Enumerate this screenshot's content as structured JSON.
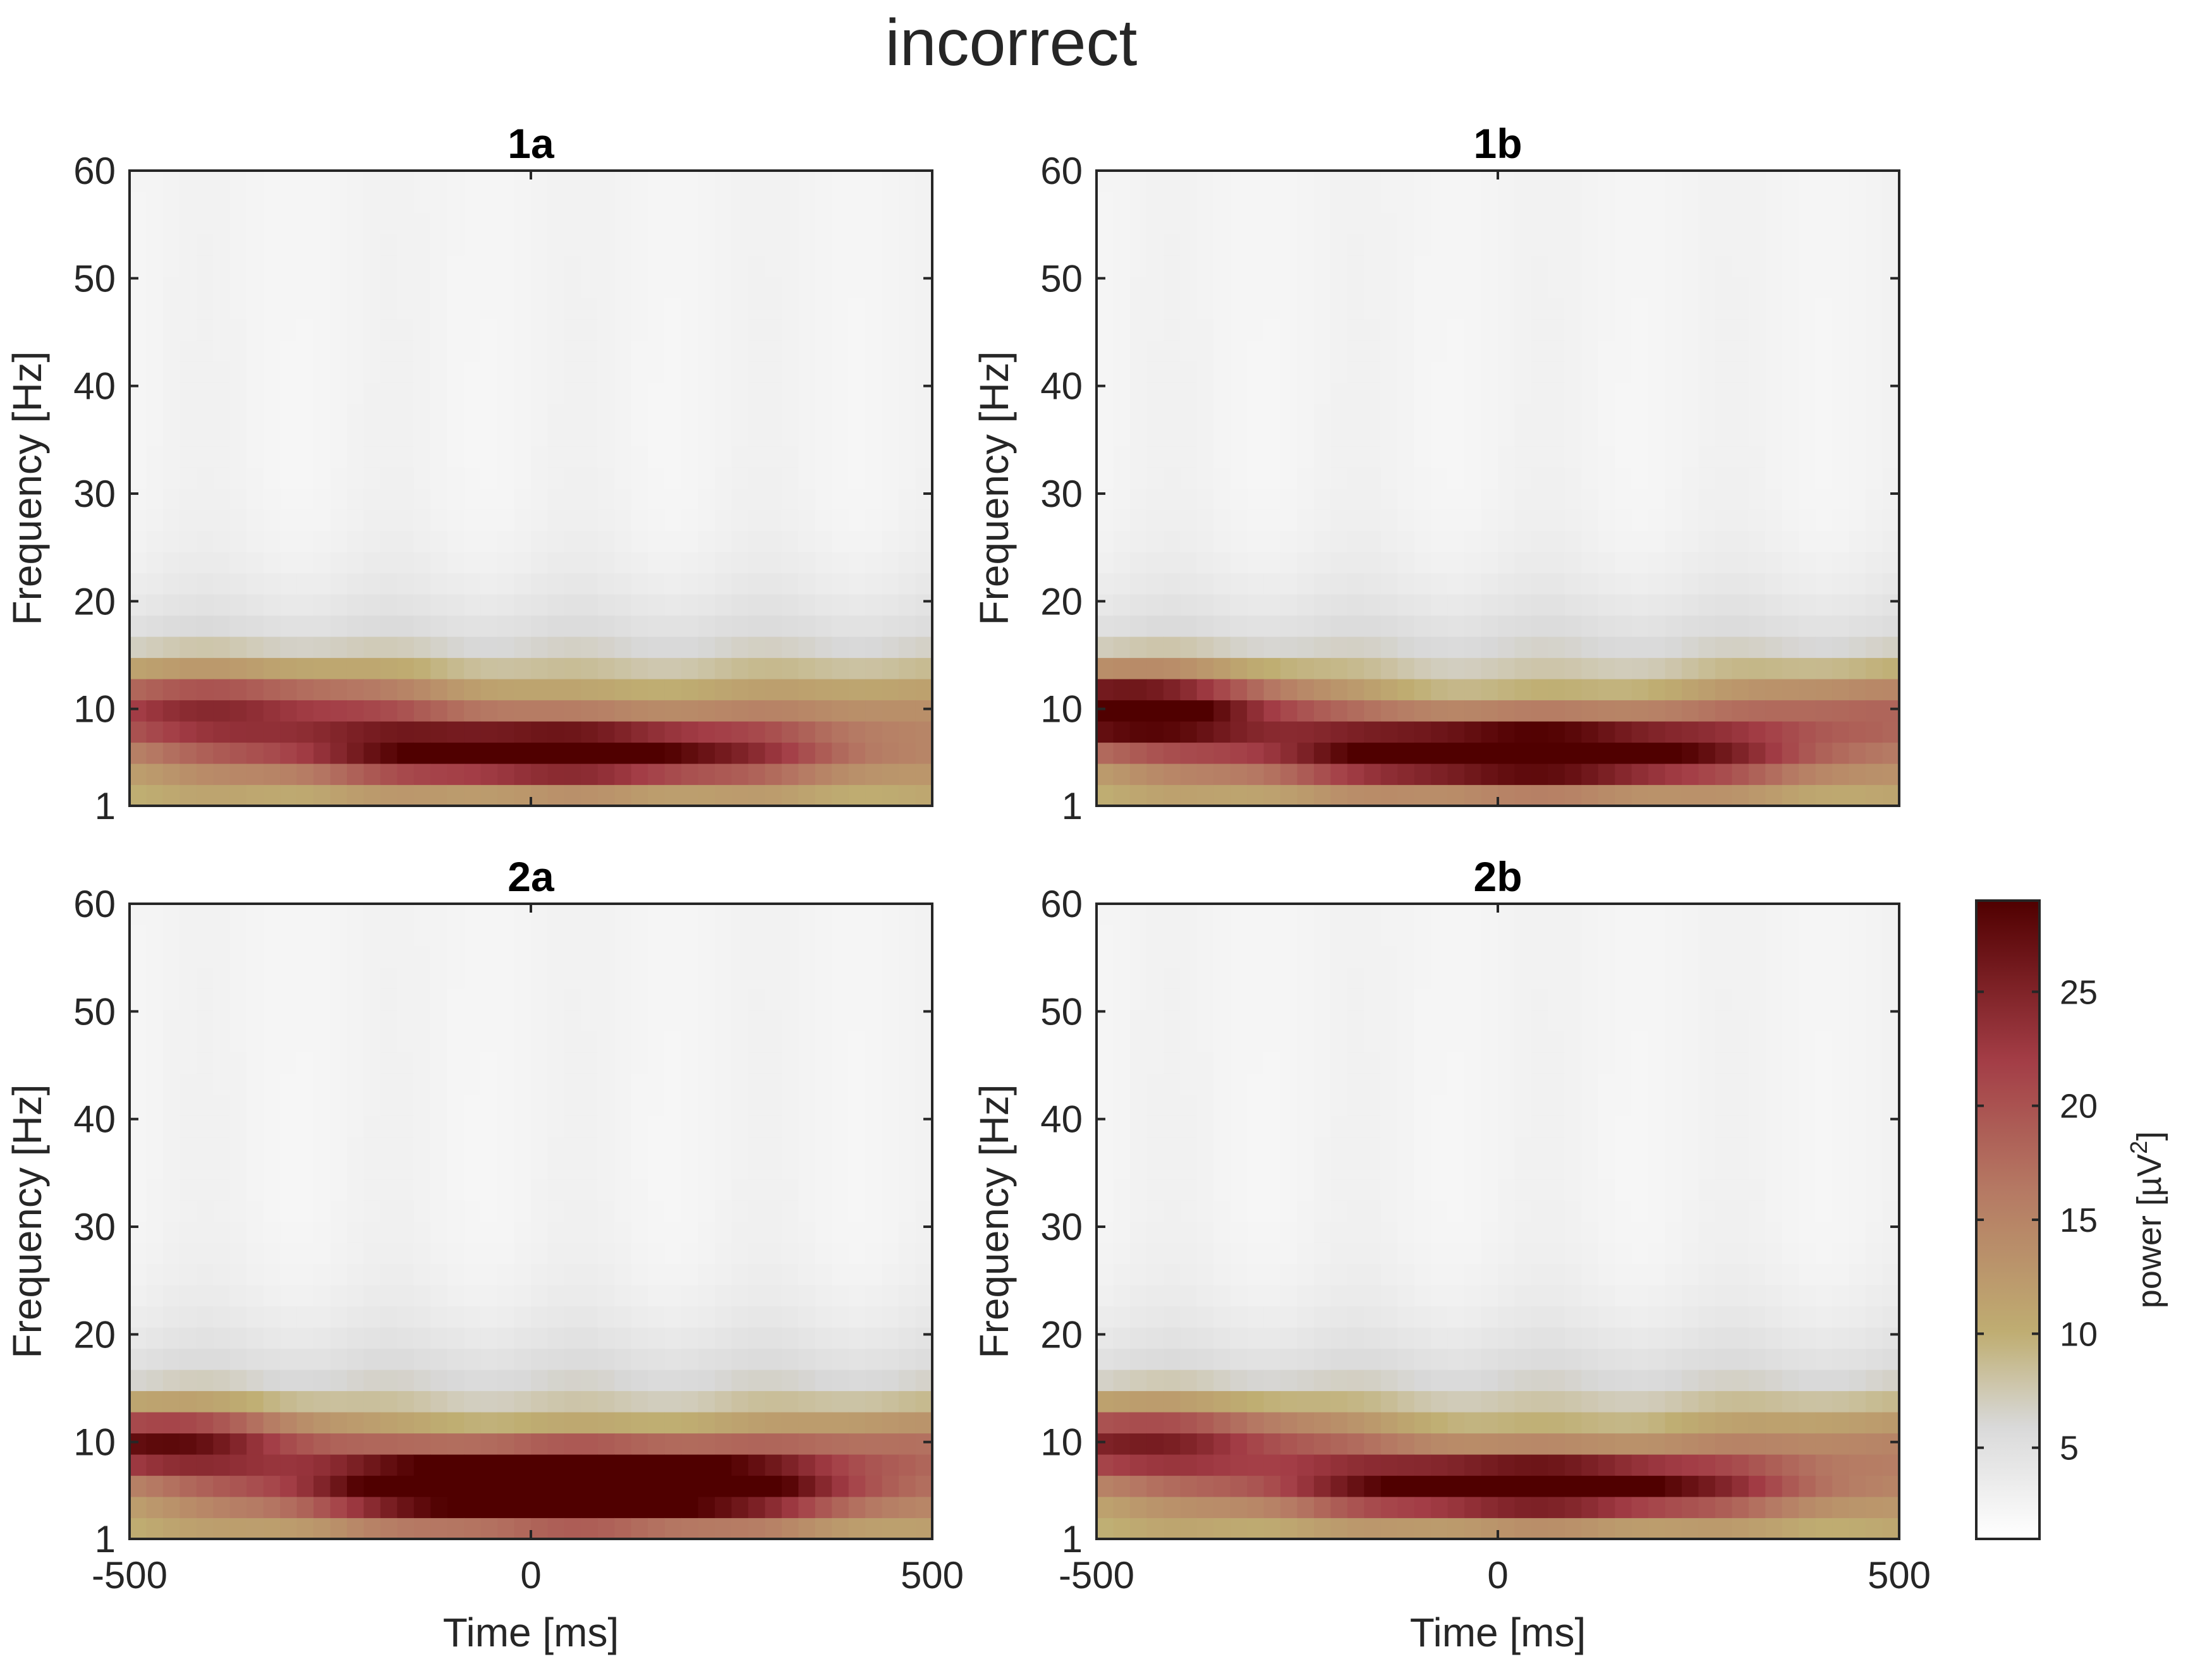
{
  "figure_title": "incorrect",
  "colors": {
    "low": "#ffffff",
    "mid_low": "#d8d8d8",
    "mid": "#bfae72",
    "mid_high": "#b57863",
    "high": "#a33d46",
    "max": "#500000",
    "axis": "#262626"
  },
  "chart_data": [
    {
      "type": "heatmap",
      "title": "1a",
      "xlabel": "",
      "ylabel": "Frequency [Hz]",
      "xlim": [
        -500,
        500
      ],
      "ylim": [
        1,
        60
      ],
      "xticks": [
        "-500",
        "0",
        "500"
      ],
      "yticks": [
        "1",
        "10",
        "20",
        "30",
        "40",
        "50",
        "60"
      ],
      "show_xtick_labels": false,
      "features": {
        "background": 2.5,
        "broadband_bump": {
          "center_hz": 5,
          "width_hz": 12,
          "amplitude": 8
        },
        "blobs": [
          {
            "t": -400,
            "f": 10,
            "st": 220,
            "sf": 2.6,
            "amp": 14
          },
          {
            "t": 30,
            "f": 6,
            "st": 230,
            "sf": 2.0,
            "amp": 22
          },
          {
            "t": 400,
            "f": 10,
            "st": 200,
            "sf": 2.6,
            "amp": 4
          }
        ]
      }
    },
    {
      "type": "heatmap",
      "title": "1b",
      "xlabel": "",
      "ylabel": "Frequency [Hz]",
      "xlim": [
        -500,
        500
      ],
      "ylim": [
        1,
        60
      ],
      "xticks": [
        "-500",
        "0",
        "500"
      ],
      "yticks": [
        "1",
        "10",
        "20",
        "30",
        "40",
        "50",
        "60"
      ],
      "show_xtick_labels": false,
      "features": {
        "background": 2.5,
        "broadband_bump": {
          "center_hz": 5,
          "width_hz": 12,
          "amplitude": 8
        },
        "blobs": [
          {
            "t": -480,
            "f": 10,
            "st": 160,
            "sf": 2.4,
            "amp": 24
          },
          {
            "t": 30,
            "f": 6,
            "st": 230,
            "sf": 2.2,
            "amp": 26
          },
          {
            "t": 460,
            "f": 10,
            "st": 160,
            "sf": 2.4,
            "amp": 8
          }
        ]
      }
    },
    {
      "type": "heatmap",
      "title": "2a",
      "xlabel": "Time [ms]",
      "ylabel": "Frequency [Hz]",
      "xlim": [
        -500,
        500
      ],
      "ylim": [
        1,
        60
      ],
      "xticks": [
        "-500",
        "0",
        "500"
      ],
      "yticks": [
        "1",
        "10",
        "20",
        "30",
        "40",
        "50",
        "60"
      ],
      "show_xtick_labels": true,
      "features": {
        "background": 2.5,
        "broadband_bump": {
          "center_hz": 5,
          "width_hz": 12,
          "amplitude": 8
        },
        "blobs": [
          {
            "t": -480,
            "f": 10,
            "st": 150,
            "sf": 2.2,
            "amp": 18
          },
          {
            "t": 50,
            "f": 6,
            "st": 230,
            "sf": 2.4,
            "amp": 34
          },
          {
            "t": 470,
            "f": 10,
            "st": 150,
            "sf": 2.2,
            "amp": 6
          }
        ]
      }
    },
    {
      "type": "heatmap",
      "title": "2b",
      "xlabel": "Time [ms]",
      "ylabel": "Frequency [Hz]",
      "xlim": [
        -500,
        500
      ],
      "ylim": [
        1,
        60
      ],
      "xticks": [
        "-500",
        "0",
        "500"
      ],
      "yticks": [
        "1",
        "10",
        "20",
        "30",
        "40",
        "50",
        "60"
      ],
      "show_xtick_labels": true,
      "features": {
        "background": 2.5,
        "broadband_bump": {
          "center_hz": 5,
          "width_hz": 12,
          "amplitude": 8
        },
        "blobs": [
          {
            "t": -470,
            "f": 10,
            "st": 200,
            "sf": 2.4,
            "amp": 16
          },
          {
            "t": 40,
            "f": 6,
            "st": 220,
            "sf": 2.0,
            "amp": 24
          },
          {
            "t": 460,
            "f": 10,
            "st": 180,
            "sf": 2.4,
            "amp": 5
          }
        ]
      }
    }
  ],
  "colorbar": {
    "label": "power [µV",
    "label_sup": "2",
    "label_end": "]",
    "range": [
      1,
      29
    ],
    "ticks": [
      "5",
      "10",
      "15",
      "20",
      "25"
    ],
    "tick_values": [
      5,
      10,
      15,
      20,
      25
    ]
  }
}
